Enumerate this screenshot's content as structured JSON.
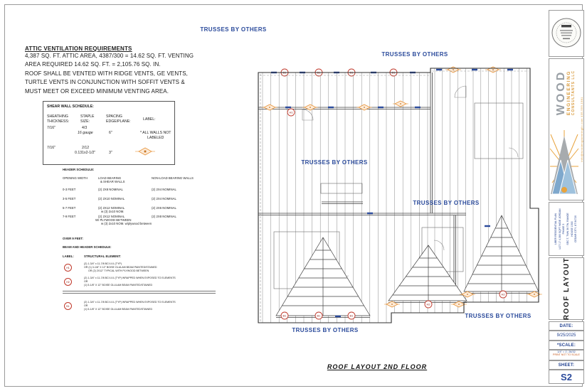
{
  "attic": {
    "title": "ATTIC VENTILATION REQUIREMENTS",
    "lines": [
      "4,387 SQ. FT. ATTIC AREA, 4387/300 = 14.62 SQ. FT. VENTING",
      "AREA REQUIRED 14.62 SQ. FT. = 2,105.76 SQ. IN.",
      "ROOF SHALL BE VENTED WITH RIDGE VENTS, GE VENTS,",
      "TURTLE VENTS IN CONJUNCTION WITH SOFFIT VENTS &",
      "MUST MEET OR EXCEED MINIMUM VENTING AREA."
    ]
  },
  "shear_wall": {
    "title": "SHEAR WALL SCHEDULE:",
    "h_c1a": "SHEATHING",
    "h_c1b": "THICKNESS:",
    "h_c2a": "STAPLE",
    "h_c2b": "SIZE:",
    "h_c3a": "SPACING",
    "h_c3b": "EDGE/PLANE:",
    "h_c4": "LABEL:",
    "r1_thick": "7/16\"",
    "r1_size1": "4/3",
    "r1_size2": "16 gauge",
    "r1_space": "6\"",
    "r1_label1": "* ALL WALLS NOT",
    "r1_label2": "LABELED",
    "r2_thick": "7/16\"",
    "r2_size1": "2/12",
    "r2_size2": "0.131x2-1/2\"",
    "r2_space": "3\""
  },
  "header_schedule": {
    "title": "HEADER SCHEDULE:",
    "col1": "OPENING WIDTH",
    "col2a": "LOAD BEARING",
    "col2b": "& SHEAR WALLS",
    "col3": "NON-LOAD BEARING WALLS",
    "rows": [
      {
        "w": "0-3 FEET",
        "lb1": "(2) 2X8 NOMINAL",
        "lb2": "",
        "lb3": "",
        "nlb": "(2) 2X4 NOMINAL"
      },
      {
        "w": "3-5 FEET",
        "lb1": "(2) 2X10 NOMINAL",
        "lb2": "",
        "lb3": "",
        "nlb": "(2) 2X4 NOMINAL"
      },
      {
        "w": "5-7 FEET",
        "lb1": "(2) 2X12 NOMINAL",
        "lb2": "w (3) 2x10 NOM.",
        "lb3": "",
        "nlb": "(2) 2X6 NOMINAL"
      },
      {
        "w": "7-9 FEET",
        "lb1": "(2) 2X12 NOMINAL",
        "lb2": "W/ PLYWOOD BETWEEN",
        "lb3": "w (3) 2x10 NOM. w/plywood between",
        "nlb": "(2) 2X8 NOMINAL"
      }
    ],
    "footer": "OVER 9 FEET:"
  },
  "beam_schedule": {
    "title": "BEAM AND HEADER SCHEDULE:",
    "label_hdr": "LABEL:",
    "elem_hdr": "STRUCTURAL ELEMENT:",
    "items": [
      {
        "label": "H1",
        "lines": [
          "(2) 1-3/4\" x 11-7/8 BCI LVL (TYP)",
          "OR (1) 3-1/8\" X 12\" BOISE GLULAM BEAM PAINTED/STAINED",
          "OR (2) 2X12\" TYPICAL WITH PLYWOOD BETWEEN"
        ]
      },
      {
        "label": "H2",
        "lines": [
          "(2) 1-3/4\" x 11-7/8 BCI LVL (TYP) WRAPPED WHEN EXPOSED TO ELEMENTS",
          "OR",
          "(1) 5-1/8\" X 12\" BOISE GLULAM BEAM PAINTED/STAINED"
        ]
      },
      {
        "label": "B1",
        "lines": [
          "(2) 1-3/4\" x 11-7/8 BCI LVL (TYP) WRAPPED WHEN EXPOSED TO ELEMENTS",
          "OR",
          "(1) 5-1/8\" X 12\" BOISE GLULAM BEAM PAINTED/STAINED"
        ]
      }
    ]
  },
  "drawing": {
    "trusses_label": "TRUSSES BY OTHERS",
    "marker_b1": "B1",
    "marker_h1": "H1",
    "marker_h2": "H2",
    "caption": "ROOF LAYOUT 2ND FLOOR"
  },
  "titleblock": {
    "company_name": "WOOD",
    "company_line2": "ENGINEERING",
    "company_line3": "CONSULTANTS LLC",
    "contact": "info@woodengineeringllc.com   435-559-1981",
    "project_lines": [
      "LIBER RESIDENTIAL PLAN",
      "LOT 17 4,380 SQFT WIDE JORDAN",
      "PHASE 3",
      "SEC T, TWN 36 TW, RANGE",
      "HOUSE 1500",
      "CEDAR CITY, UT 84720"
    ],
    "sheet_title": "ROOF LAYOUT",
    "date_label": "DATE:",
    "date": "9/25/2025",
    "scale_label": "*SCALE:",
    "scale1": "1/4\" = 1'; 26/32",
    "scale2": "PRINT NOT TO SCALE",
    "sheet_label": "SHEET:",
    "sheet": "S2"
  },
  "colors": {
    "label_blue": "#2a4a9b",
    "navy": "#1f3f8f",
    "marker_orange": "#e8953c",
    "marker_red": "#c0392b",
    "brand_gray": "#9aa0a6",
    "brand_orange": "#d99a3c"
  }
}
